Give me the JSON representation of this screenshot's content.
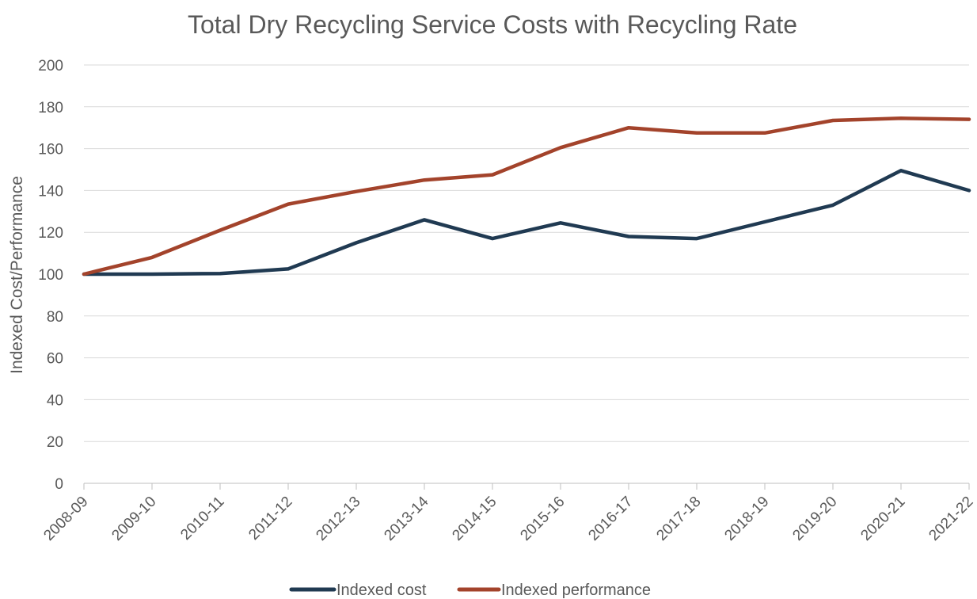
{
  "chart_data": {
    "type": "line",
    "title": "Total Dry Recycling Service Costs with Recycling Rate",
    "xlabel": "",
    "ylabel": "Indexed Cost/Performance",
    "ylim": [
      0,
      200
    ],
    "yticks": [
      0,
      20,
      40,
      60,
      80,
      100,
      120,
      140,
      160,
      180,
      200
    ],
    "grid": true,
    "legend_position": "bottom",
    "categories": [
      "2008-09",
      "2009-10",
      "2010-11",
      "2011-12",
      "2012-13",
      "2013-14",
      "2014-15",
      "2015-16",
      "2016-17",
      "2017-18",
      "2018-19",
      "2019-20",
      "2020-21",
      "2021-22"
    ],
    "series": [
      {
        "name": "Indexed cost",
        "color": "#203a52",
        "values": [
          100,
          100,
          100.3,
          102.5,
          115,
          126,
          117,
          124.5,
          118,
          117,
          125,
          133,
          149.5,
          140
        ]
      },
      {
        "name": "Indexed performance",
        "color": "#a3432b",
        "values": [
          100,
          108,
          121,
          133.5,
          139.5,
          145,
          147.5,
          160.5,
          170,
          167.5,
          167.5,
          173.5,
          174.5,
          174
        ]
      }
    ]
  }
}
